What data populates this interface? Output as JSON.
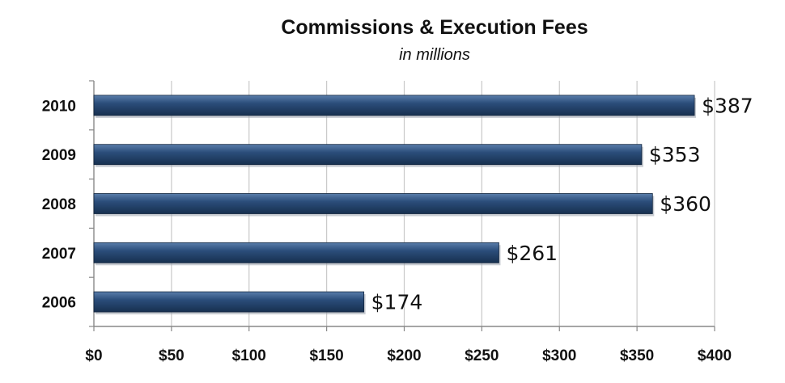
{
  "chart_data": {
    "type": "bar",
    "orientation": "horizontal",
    "title": "Commissions & Execution Fees",
    "subtitle": "in millions",
    "categories": [
      "2010",
      "2009",
      "2008",
      "2007",
      "2006"
    ],
    "values": [
      387,
      353,
      360,
      261,
      174
    ],
    "data_labels": [
      "$387",
      "$353",
      "$360",
      "$261",
      "$174"
    ],
    "x_ticks": [
      "$0",
      "$50",
      "$100",
      "$150",
      "$200",
      "$250",
      "$300",
      "$350",
      "$400"
    ],
    "xlim": [
      0,
      400
    ],
    "x_tick_step": 50,
    "grid": "vertical",
    "bar_color": "#1f3f66",
    "xlabel": "",
    "ylabel": ""
  }
}
